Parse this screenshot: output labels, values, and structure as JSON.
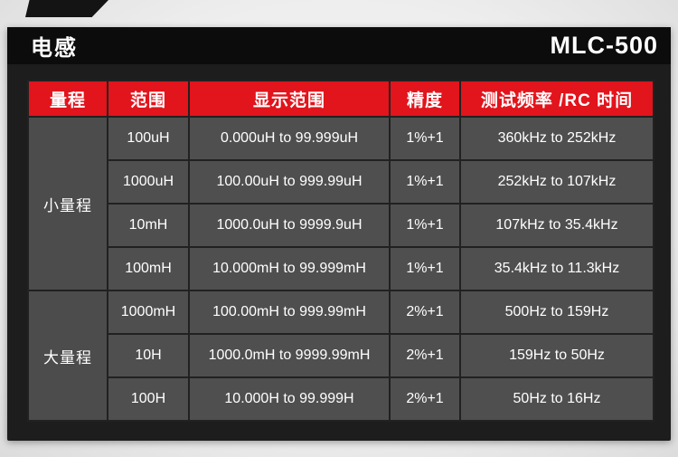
{
  "header": {
    "title": "电感",
    "model": "MLC-500"
  },
  "table": {
    "columns": [
      "量程",
      "范围",
      "显示范围",
      "精度",
      "测试频率 /RC 时间"
    ],
    "groups": [
      {
        "label": "小量程",
        "rows": [
          [
            "100uH",
            "0.000uH to 99.999uH",
            "1%+1",
            "360kHz to 252kHz"
          ],
          [
            "1000uH",
            "100.00uH to 999.99uH",
            "1%+1",
            "252kHz to 107kHz"
          ],
          [
            "10mH",
            "1000.0uH to 9999.9uH",
            "1%+1",
            "107kHz to 35.4kHz"
          ],
          [
            "100mH",
            "10.000mH to 99.999mH",
            "1%+1",
            "35.4kHz to 11.3kHz"
          ]
        ]
      },
      {
        "label": "大量程",
        "rows": [
          [
            "1000mH",
            "100.00mH to 999.99mH",
            "2%+1",
            "500Hz to 159Hz"
          ],
          [
            "10H",
            "1000.0mH to 9999.99mH",
            "2%+1",
            "159Hz to 50Hz"
          ],
          [
            "100H",
            "10.000H to 99.999H",
            "2%+1",
            "50Hz to 16Hz"
          ]
        ]
      }
    ]
  },
  "colors": {
    "accent_red": "#e2141c",
    "panel_dark": "#1d1d1d",
    "cell_gray": "#4f4f4f"
  }
}
